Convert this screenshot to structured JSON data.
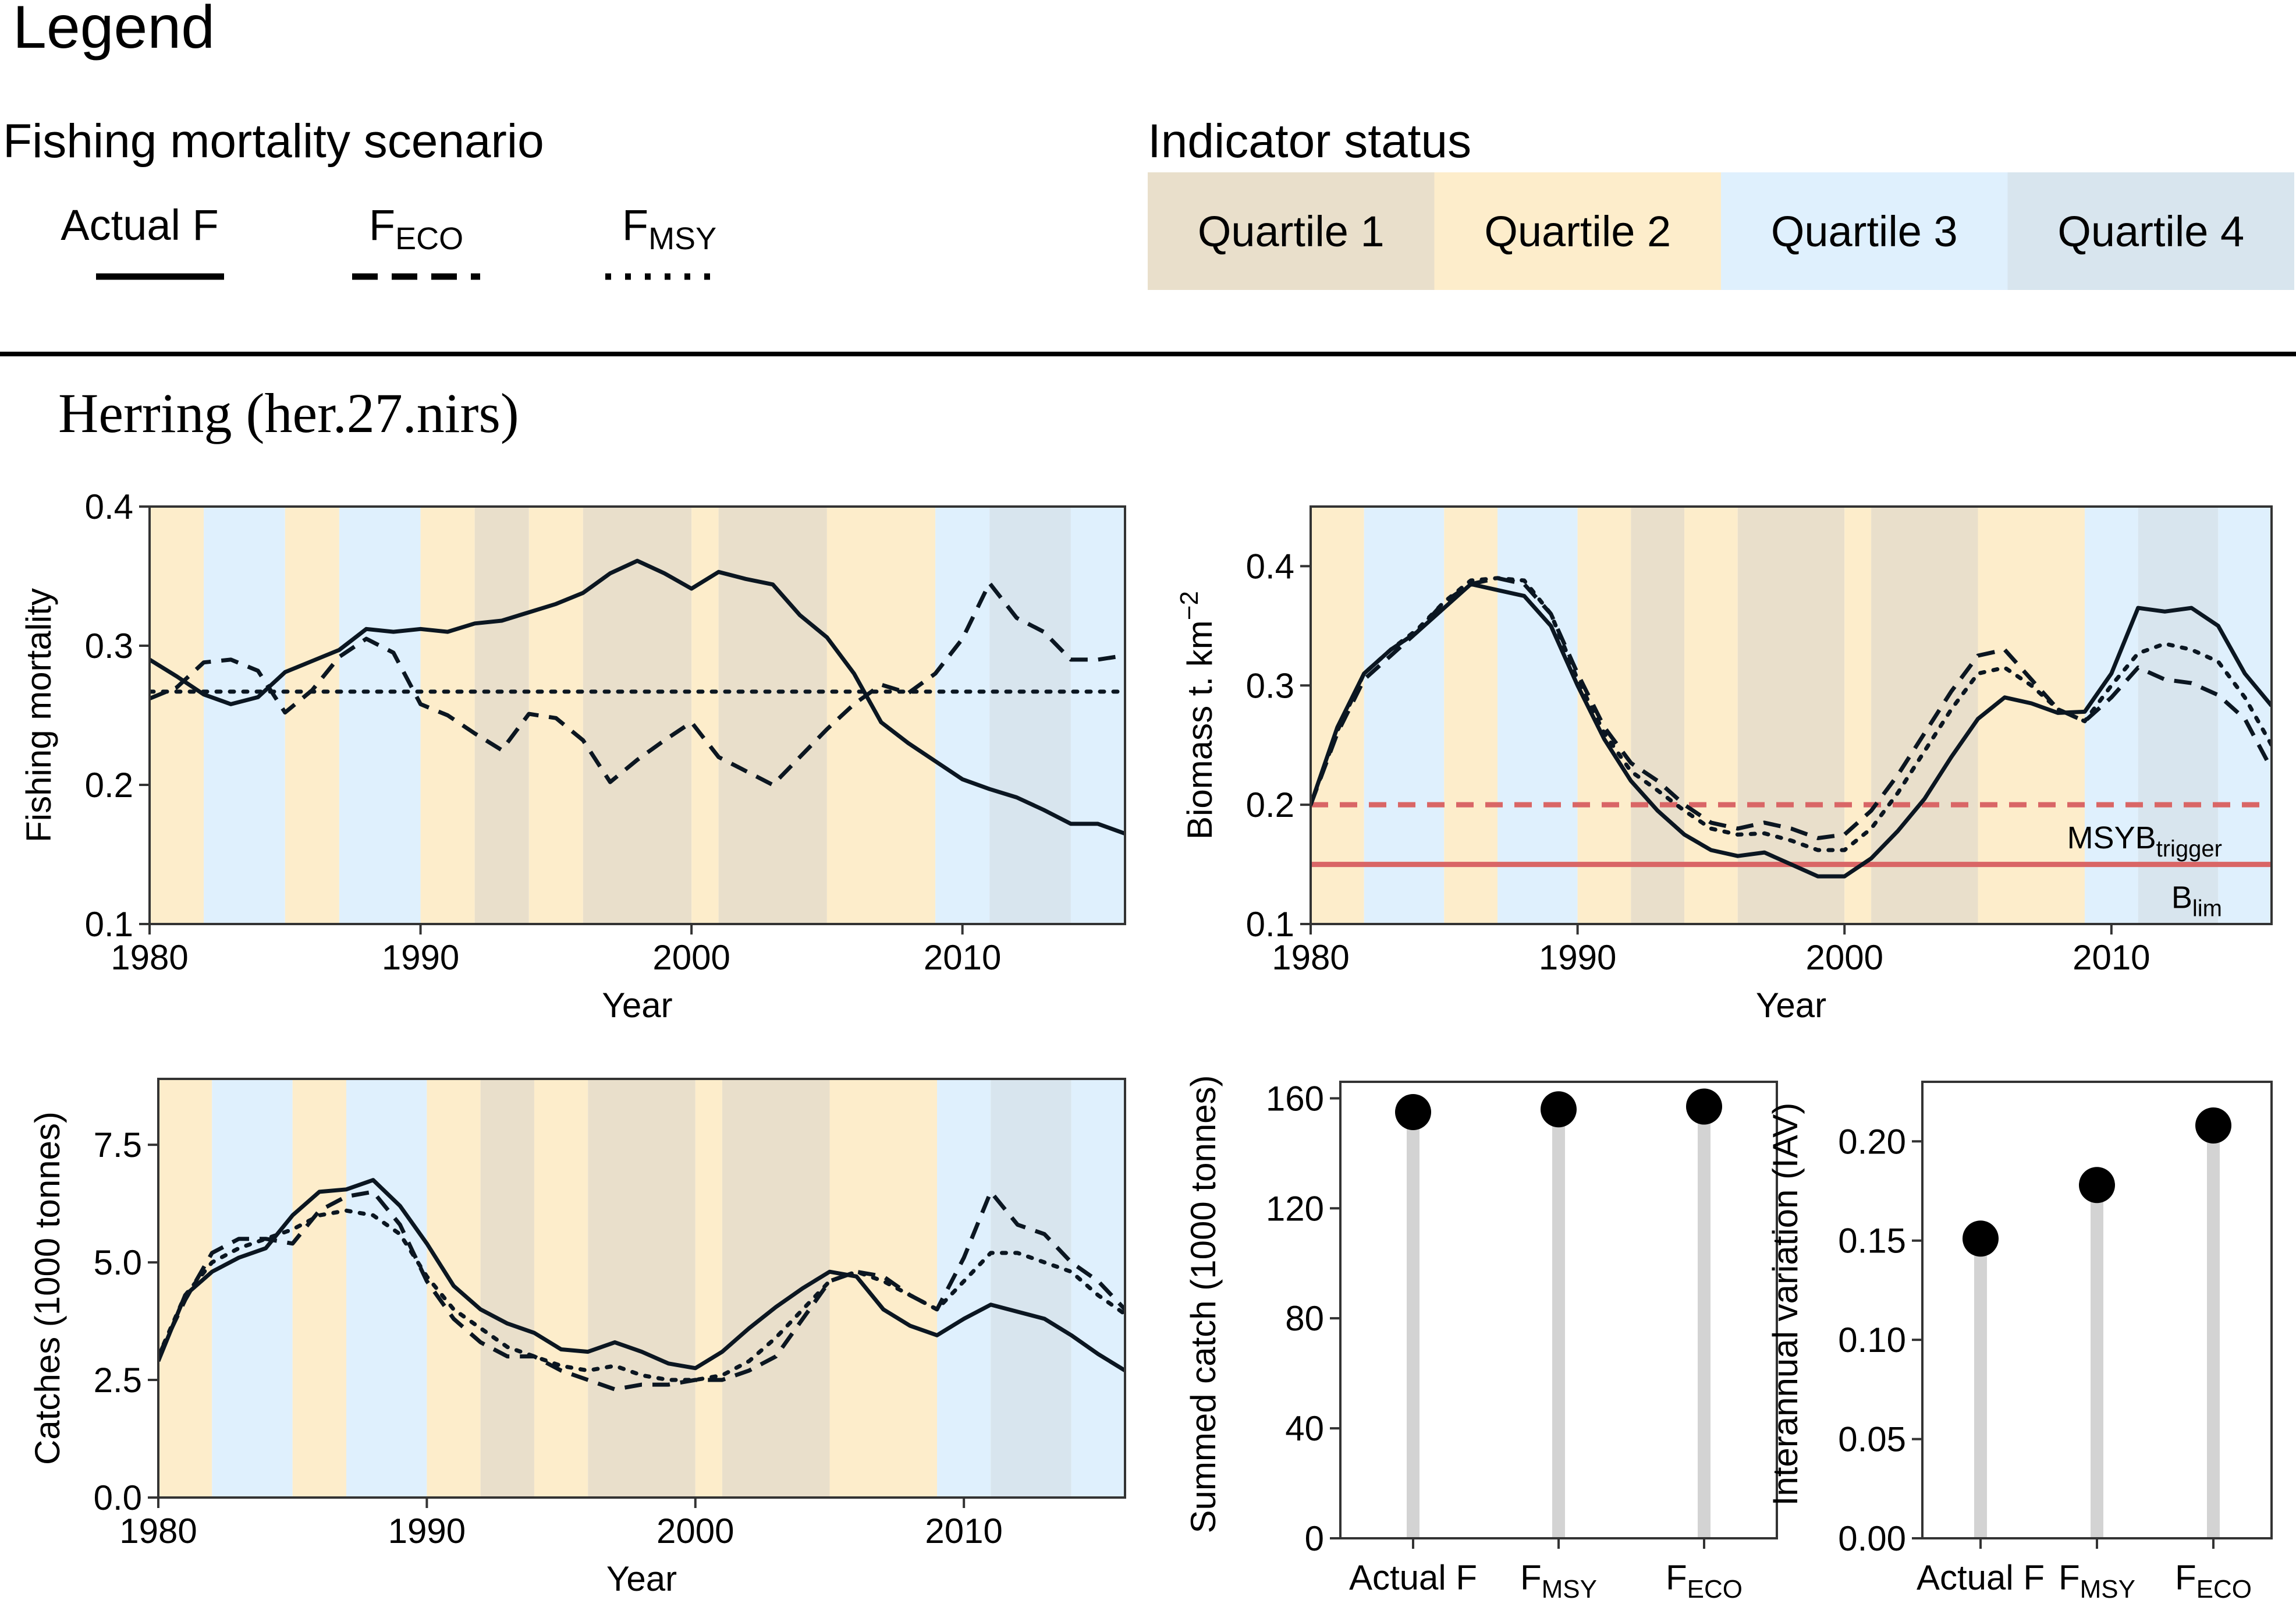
{
  "legend": {
    "title": "Legend",
    "scenario_title": "Fishing mortality scenario",
    "scenarios": [
      {
        "key": "actual",
        "label": "Actual F",
        "dash": "solid"
      },
      {
        "key": "eco",
        "label_main": "F",
        "label_sub": "ECO",
        "dash": "dashed"
      },
      {
        "key": "msy",
        "label_main": "F",
        "label_sub": "MSY",
        "dash": "dotted"
      }
    ],
    "status_title": "Indicator status",
    "quartiles": [
      {
        "label": "Quartile 1",
        "color": "#e9dfcb"
      },
      {
        "label": "Quartile 2",
        "color": "#fdedcb"
      },
      {
        "label": "Quartile 3",
        "color": "#dff0fd"
      },
      {
        "label": "Quartile 4",
        "color": "#d8e5ee"
      }
    ]
  },
  "stock_title": "Herring (her.27.nirs)",
  "chart_data": [
    {
      "id": "fishing_mortality",
      "type": "line",
      "xlabel": "Year",
      "ylabel": "Fishing mortality",
      "xlim": [
        1980,
        2016
      ],
      "ylim": [
        0.1,
        0.4
      ],
      "xticks": [
        1980,
        1990,
        2000,
        2010
      ],
      "yticks": [
        0.1,
        0.2,
        0.3,
        0.4
      ],
      "ytick_labels": [
        "0.1",
        "0.2",
        "0.3",
        "0.4"
      ],
      "bands": [
        {
          "from": 1980,
          "to": 1982,
          "q": 2
        },
        {
          "from": 1982,
          "to": 1985,
          "q": 3
        },
        {
          "from": 1985,
          "to": 1987,
          "q": 2
        },
        {
          "from": 1987,
          "to": 1990,
          "q": 3
        },
        {
          "from": 1990,
          "to": 1992,
          "q": 2
        },
        {
          "from": 1992,
          "to": 1994,
          "q": 1
        },
        {
          "from": 1994,
          "to": 1996,
          "q": 2
        },
        {
          "from": 1996,
          "to": 2000,
          "q": 1
        },
        {
          "from": 2000,
          "to": 2001,
          "q": 2
        },
        {
          "from": 2001,
          "to": 2005,
          "q": 1
        },
        {
          "from": 2005,
          "to": 2009,
          "q": 2
        },
        {
          "from": 2009,
          "to": 2011,
          "q": 3
        },
        {
          "from": 2011,
          "to": 2014,
          "q": 4
        },
        {
          "from": 2014,
          "to": 2016,
          "q": 3
        }
      ],
      "x": [
        1980,
        1981,
        1982,
        1983,
        1984,
        1985,
        1986,
        1987,
        1988,
        1989,
        1990,
        1991,
        1992,
        1993,
        1994,
        1995,
        1996,
        1997,
        1998,
        1999,
        2000,
        2001,
        2002,
        2003,
        2004,
        2005,
        2006,
        2007,
        2008,
        2009,
        2010,
        2011,
        2012,
        2013,
        2014,
        2015,
        2016
      ],
      "series": [
        {
          "name": "Actual F",
          "style": "solid",
          "values": [
            0.29,
            0.278,
            0.265,
            0.258,
            0.263,
            0.281,
            0.289,
            0.297,
            0.312,
            0.31,
            0.312,
            0.31,
            0.316,
            0.318,
            0.324,
            0.33,
            0.338,
            0.352,
            0.361,
            0.352,
            0.341,
            0.353,
            0.348,
            0.344,
            0.322,
            0.306,
            0.28,
            0.245,
            0.23,
            0.217,
            0.204,
            0.197,
            0.191,
            0.182,
            0.172,
            0.172,
            0.165
          ]
        },
        {
          "name": "FECO",
          "style": "dashed",
          "values": [
            0.262,
            0.27,
            0.288,
            0.29,
            0.282,
            0.252,
            0.268,
            0.292,
            0.305,
            0.295,
            0.258,
            0.25,
            0.237,
            0.225,
            0.251,
            0.248,
            0.232,
            0.202,
            0.218,
            0.232,
            0.245,
            0.22,
            0.21,
            0.2,
            0.22,
            0.24,
            0.258,
            0.272,
            0.266,
            0.28,
            0.305,
            0.345,
            0.32,
            0.31,
            0.29,
            0.29,
            0.293
          ]
        },
        {
          "name": "FMSY",
          "style": "dotted",
          "values": [
            0.267,
            0.267,
            0.267,
            0.267,
            0.267,
            0.267,
            0.267,
            0.267,
            0.267,
            0.267,
            0.267,
            0.267,
            0.267,
            0.267,
            0.267,
            0.267,
            0.267,
            0.267,
            0.267,
            0.267,
            0.267,
            0.267,
            0.267,
            0.267,
            0.267,
            0.267,
            0.267,
            0.267,
            0.267,
            0.267,
            0.267,
            0.267,
            0.267,
            0.267,
            0.267,
            0.267,
            0.267
          ]
        }
      ]
    },
    {
      "id": "biomass",
      "type": "line",
      "xlabel": "Year",
      "ylabel_main": "Biomass t. km",
      "ylabel_sup": "−2",
      "xlim": [
        1980,
        2016
      ],
      "ylim": [
        0.1,
        0.45
      ],
      "xticks": [
        1980,
        1990,
        2000,
        2010
      ],
      "yticks": [
        0.1,
        0.2,
        0.3,
        0.4
      ],
      "ytick_labels": [
        "0.1",
        "0.2",
        "0.3",
        "0.4"
      ],
      "bands": [
        {
          "from": 1980,
          "to": 1982,
          "q": 2
        },
        {
          "from": 1982,
          "to": 1985,
          "q": 3
        },
        {
          "from": 1985,
          "to": 1987,
          "q": 2
        },
        {
          "from": 1987,
          "to": 1990,
          "q": 3
        },
        {
          "from": 1990,
          "to": 1992,
          "q": 2
        },
        {
          "from": 1992,
          "to": 1994,
          "q": 1
        },
        {
          "from": 1994,
          "to": 1996,
          "q": 2
        },
        {
          "from": 1996,
          "to": 2000,
          "q": 1
        },
        {
          "from": 2000,
          "to": 2001,
          "q": 2
        },
        {
          "from": 2001,
          "to": 2005,
          "q": 1
        },
        {
          "from": 2005,
          "to": 2009,
          "q": 2
        },
        {
          "from": 2009,
          "to": 2011,
          "q": 3
        },
        {
          "from": 2011,
          "to": 2014,
          "q": 4
        },
        {
          "from": 2014,
          "to": 2016,
          "q": 3
        }
      ],
      "reference_lines": [
        {
          "name": "MSYBtrigger",
          "label_main": "MSYB",
          "label_sub": "trigger",
          "value": 0.2,
          "style": "dashed",
          "color": "#d96666"
        },
        {
          "name": "Blim",
          "label_main": "B",
          "label_sub": "lim",
          "value": 0.15,
          "style": "solid",
          "color": "#d96666"
        }
      ],
      "x": [
        1980,
        1981,
        1982,
        1983,
        1984,
        1985,
        1986,
        1987,
        1988,
        1989,
        1990,
        1991,
        1992,
        1993,
        1994,
        1995,
        1996,
        1997,
        1998,
        1999,
        2000,
        2001,
        2002,
        2003,
        2004,
        2005,
        2006,
        2007,
        2008,
        2009,
        2010,
        2011,
        2012,
        2013,
        2014,
        2015,
        2016
      ],
      "series": [
        {
          "name": "Actual F",
          "style": "solid",
          "values": [
            0.2,
            0.265,
            0.31,
            0.33,
            0.345,
            0.365,
            0.385,
            0.38,
            0.375,
            0.35,
            0.3,
            0.255,
            0.22,
            0.195,
            0.175,
            0.162,
            0.157,
            0.16,
            0.15,
            0.14,
            0.14,
            0.155,
            0.178,
            0.205,
            0.24,
            0.272,
            0.29,
            0.285,
            0.277,
            0.278,
            0.31,
            0.365,
            0.362,
            0.365,
            0.35,
            0.31,
            0.283
          ]
        },
        {
          "name": "FECO",
          "style": "dashed",
          "values": [
            0.2,
            0.26,
            0.305,
            0.325,
            0.345,
            0.37,
            0.385,
            0.39,
            0.385,
            0.36,
            0.31,
            0.265,
            0.235,
            0.22,
            0.2,
            0.185,
            0.18,
            0.185,
            0.18,
            0.172,
            0.175,
            0.195,
            0.225,
            0.26,
            0.295,
            0.325,
            0.33,
            0.305,
            0.28,
            0.27,
            0.29,
            0.315,
            0.305,
            0.302,
            0.292,
            0.272,
            0.23
          ]
        },
        {
          "name": "FMSY",
          "style": "dotted",
          "values": [
            0.2,
            0.262,
            0.31,
            0.33,
            0.347,
            0.37,
            0.388,
            0.39,
            0.388,
            0.36,
            0.305,
            0.26,
            0.228,
            0.212,
            0.195,
            0.18,
            0.175,
            0.176,
            0.17,
            0.162,
            0.162,
            0.18,
            0.21,
            0.245,
            0.28,
            0.31,
            0.315,
            0.3,
            0.28,
            0.27,
            0.3,
            0.327,
            0.335,
            0.33,
            0.32,
            0.29,
            0.25
          ]
        }
      ]
    },
    {
      "id": "catches",
      "type": "line",
      "xlabel": "Year",
      "ylabel": "Catches (1000 tonnes)",
      "xlim": [
        1980,
        2016
      ],
      "ylim": [
        0,
        8.9
      ],
      "xticks": [
        1980,
        1990,
        2000,
        2010
      ],
      "yticks": [
        0,
        2.5,
        5,
        7.5
      ],
      "ytick_labels": [
        "0.0",
        "2.5",
        "5.0",
        "7.5"
      ],
      "bands": [
        {
          "from": 1980,
          "to": 1982,
          "q": 2
        },
        {
          "from": 1982,
          "to": 1985,
          "q": 3
        },
        {
          "from": 1985,
          "to": 1987,
          "q": 2
        },
        {
          "from": 1987,
          "to": 1990,
          "q": 3
        },
        {
          "from": 1990,
          "to": 1992,
          "q": 2
        },
        {
          "from": 1992,
          "to": 1994,
          "q": 1
        },
        {
          "from": 1994,
          "to": 1996,
          "q": 2
        },
        {
          "from": 1996,
          "to": 2000,
          "q": 1
        },
        {
          "from": 2000,
          "to": 2001,
          "q": 2
        },
        {
          "from": 2001,
          "to": 2005,
          "q": 1
        },
        {
          "from": 2005,
          "to": 2009,
          "q": 2
        },
        {
          "from": 2009,
          "to": 2011,
          "q": 3
        },
        {
          "from": 2011,
          "to": 2014,
          "q": 4
        },
        {
          "from": 2014,
          "to": 2016,
          "q": 3
        }
      ],
      "x": [
        1980,
        1981,
        1982,
        1983,
        1984,
        1985,
        1986,
        1987,
        1988,
        1989,
        1990,
        1991,
        1992,
        1993,
        1994,
        1995,
        1996,
        1997,
        1998,
        1999,
        2000,
        2001,
        2002,
        2003,
        2004,
        2005,
        2006,
        2007,
        2008,
        2009,
        2010,
        2011,
        2012,
        2013,
        2014,
        2015,
        2016
      ],
      "series": [
        {
          "name": "Actual F",
          "style": "solid",
          "values": [
            2.9,
            4.3,
            4.8,
            5.1,
            5.3,
            6.0,
            6.5,
            6.55,
            6.75,
            6.2,
            5.4,
            4.5,
            4.0,
            3.7,
            3.5,
            3.15,
            3.1,
            3.3,
            3.1,
            2.85,
            2.75,
            3.1,
            3.6,
            4.05,
            4.45,
            4.8,
            4.7,
            4.0,
            3.65,
            3.45,
            3.8,
            4.1,
            3.95,
            3.8,
            3.45,
            3.05,
            2.7
          ]
        },
        {
          "name": "FECO",
          "style": "dashed",
          "values": [
            3.0,
            4.2,
            5.2,
            5.5,
            5.5,
            5.4,
            6.1,
            6.4,
            6.5,
            5.8,
            4.6,
            3.8,
            3.3,
            3.0,
            3.0,
            2.7,
            2.5,
            2.3,
            2.4,
            2.4,
            2.5,
            2.5,
            2.7,
            3.0,
            3.8,
            4.6,
            4.8,
            4.7,
            4.3,
            4.0,
            5.1,
            6.5,
            5.8,
            5.6,
            5.0,
            4.6,
            4.0
          ]
        },
        {
          "name": "FMSY",
          "style": "dotted",
          "values": [
            3.0,
            4.3,
            5.0,
            5.3,
            5.5,
            5.7,
            6.0,
            6.1,
            6.0,
            5.6,
            4.7,
            4.0,
            3.6,
            3.2,
            3.0,
            2.8,
            2.7,
            2.8,
            2.6,
            2.5,
            2.5,
            2.6,
            2.9,
            3.4,
            4.0,
            4.6,
            4.8,
            4.6,
            4.3,
            4.0,
            4.6,
            5.2,
            5.2,
            5.0,
            4.8,
            4.3,
            3.9
          ]
        }
      ]
    },
    {
      "id": "summed_catch",
      "type": "lollipop",
      "ylabel": "Summed catch (1000 tonnes)",
      "ylim": [
        0,
        166
      ],
      "yticks": [
        0,
        40,
        80,
        120,
        160
      ],
      "ytick_labels": [
        "0",
        "40",
        "80",
        "120",
        "160"
      ],
      "categories": [
        {
          "main": "Actual F",
          "sub": ""
        },
        {
          "main": "F",
          "sub": "MSY"
        },
        {
          "main": "F",
          "sub": "ECO"
        }
      ],
      "values": [
        155,
        156,
        157
      ]
    },
    {
      "id": "interannual_variation",
      "type": "lollipop",
      "ylabel": "Interannual variation (IAV)",
      "ylim": [
        0,
        0.23
      ],
      "yticks": [
        0,
        0.05,
        0.1,
        0.15,
        0.2
      ],
      "ytick_labels": [
        "0.00",
        "0.05",
        "0.10",
        "0.15",
        "0.20"
      ],
      "categories": [
        {
          "main": "Actual F",
          "sub": ""
        },
        {
          "main": "F",
          "sub": "MSY"
        },
        {
          "main": "F",
          "sub": "ECO"
        }
      ],
      "values": [
        0.151,
        0.178,
        0.208
      ]
    }
  ]
}
